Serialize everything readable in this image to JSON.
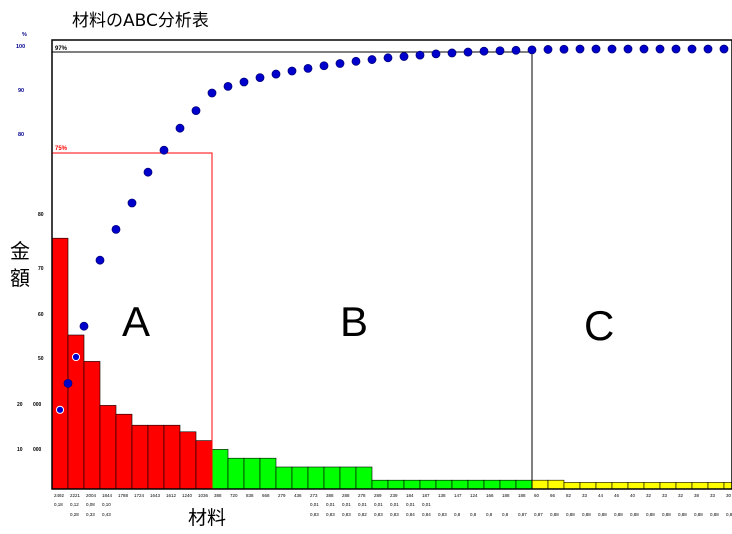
{
  "chart_data": {
    "type": "bar",
    "title": "材料のABC分析表",
    "ylabel": "金額",
    "xlabel": "材料",
    "pct_unit": "%",
    "pct_ticks": [
      "100",
      "90",
      "80"
    ],
    "amt_ticks": [
      "000",
      "000"
    ],
    "amt_axis_labels": [
      "80",
      "70",
      "60",
      "50",
      "20",
      "10"
    ],
    "cutoff_labels": {
      "a": "75%",
      "b": "97%"
    },
    "class_labels": [
      "A",
      "B",
      "C"
    ],
    "class_colors": {
      "A": "#ff0000",
      "B": "#00ff00",
      "C": "#ffff00"
    },
    "line_color": "#0000cd",
    "ylim": [
      0,
      100
    ],
    "amount_values": [
      57,
      35,
      29,
      19,
      17,
      14.5,
      14.5,
      14.5,
      13,
      11,
      9,
      7,
      7,
      7,
      5,
      5,
      5,
      5,
      5,
      5,
      2,
      2,
      2,
      2,
      2,
      2,
      2,
      2,
      2,
      2,
      2,
      2,
      1.5,
      1.5,
      1.5,
      1.5,
      1.5,
      1.5,
      1.5,
      1.5,
      1.5,
      1.5,
      1.5,
      1.5,
      1.5
    ],
    "amount_labels": [
      "2492",
      "2221",
      "2004",
      "1844",
      "1788",
      "1724",
      "1643",
      "1612",
      "1240",
      "1036",
      "388",
      "720",
      "838",
      "668",
      "279",
      "436",
      "273",
      "388",
      "288",
      "278",
      "289",
      "239",
      "184",
      "187",
      "138",
      "147",
      "124",
      "166",
      "188",
      "188",
      "60",
      "66",
      "82",
      "33",
      "44",
      "46",
      "40",
      "32",
      "33",
      "32",
      "38",
      "33",
      "30",
      "31",
      "30"
    ],
    "ratio_labels_row1": [
      "0,18",
      "0,12",
      "0,08",
      "0,10",
      "",
      "",
      "",
      "",
      "",
      "",
      "",
      "",
      "",
      "",
      "",
      "",
      "0,01",
      "0,01",
      "0,01",
      "0,01",
      "0,01",
      "0,01",
      "0,01",
      "0,01",
      "",
      "",
      "",
      "",
      "",
      "",
      "",
      "",
      "",
      "",
      "",
      "",
      "",
      "",
      "",
      "",
      "",
      "",
      "",
      "",
      ""
    ],
    "ratio_labels_row2": [
      "",
      "0,28",
      "0,33",
      "0,43",
      "",
      "",
      "",
      "",
      "",
      "",
      "",
      "",
      "",
      "",
      "",
      "",
      "0,83",
      "0,83",
      "0,83",
      "0,82",
      "0,83",
      "0,83",
      "0,84",
      "0,84",
      "0,83",
      "0,8",
      "0,8",
      "0,8",
      "0,8",
      "0,87",
      "0,87",
      "0,88",
      "0,88",
      "0,88",
      "0,88",
      "0,88",
      "0,88",
      "0,88",
      "0,88",
      "0,88",
      "0,88",
      "0,88",
      "0,88",
      "0,83",
      "0,83"
    ],
    "cumulative_pct": [
      24,
      37,
      52,
      59,
      65,
      72,
      77,
      82,
      86,
      90,
      91.5,
      92.5,
      93.5,
      94.3,
      95,
      95.6,
      96.2,
      96.7,
      97.2,
      97.6,
      98,
      98.3,
      98.6,
      98.9,
      99.1,
      99.3,
      99.5,
      99.6,
      99.7,
      99.8,
      99.9,
      99.95,
      100,
      100,
      100,
      100,
      100,
      100,
      100,
      100,
      100,
      100,
      100,
      100,
      100
    ],
    "extra_points": [
      {
        "bar_index": 0,
        "pct": 18
      },
      {
        "bar_index": 1,
        "pct": 30
      }
    ],
    "a_count": 10,
    "b_count": 20,
    "grid": false,
    "legend": "none"
  }
}
